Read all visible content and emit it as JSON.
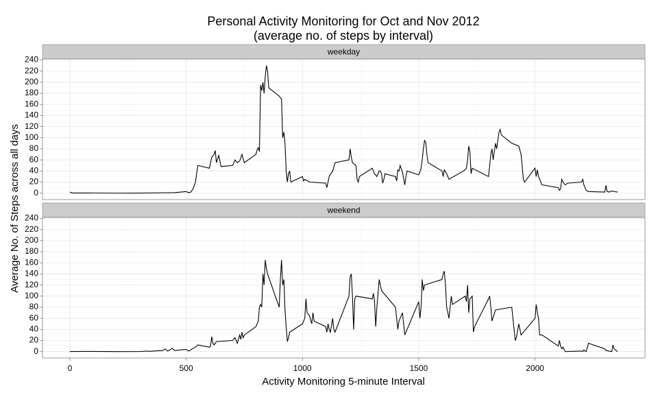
{
  "chart_data": {
    "type": "line",
    "title": "Personal Activity Monitoring for Oct and Nov 2012",
    "subtitle": "(average no. of steps by interval)",
    "x_label": "Activity Monitoring 5-minute Interval",
    "y_label": "Average No. of Steps across all days",
    "xlim": [
      -117.75,
      2472.75
    ],
    "xticks": [
      0,
      500,
      1000,
      1500,
      2000
    ],
    "ylim": [
      -11.5,
      241.9
    ],
    "yticks": [
      0,
      20,
      40,
      60,
      80,
      100,
      120,
      140,
      160,
      180,
      200,
      220,
      240
    ],
    "grid": true,
    "color": "#000000",
    "panels": [
      {
        "name": "weekday",
        "x": [
          0,
          10,
          20,
          30,
          100,
          200,
          300,
          400,
          450,
          500,
          510,
          520,
          530,
          540,
          550,
          600,
          610,
          620,
          625,
          630,
          640,
          650,
          700,
          710,
          720,
          730,
          740,
          745,
          750,
          800,
          805,
          810,
          815,
          820,
          825,
          830,
          835,
          840,
          845,
          850,
          855,
          900,
          905,
          910,
          915,
          920,
          925,
          930,
          935,
          940,
          945,
          950,
          1000,
          1005,
          1010,
          1030,
          1100,
          1105,
          1110,
          1115,
          1130,
          1140,
          1200,
          1205,
          1210,
          1215,
          1230,
          1235,
          1240,
          1245,
          1300,
          1310,
          1320,
          1330,
          1335,
          1340,
          1345,
          1350,
          1355,
          1400,
          1405,
          1410,
          1415,
          1420,
          1430,
          1440,
          1445,
          1450,
          1500,
          1505,
          1510,
          1515,
          1520,
          1525,
          1530,
          1535,
          1540,
          1600,
          1605,
          1610,
          1620,
          1630,
          1700,
          1705,
          1710,
          1715,
          1720,
          1725,
          1730,
          1800,
          1805,
          1810,
          1815,
          1820,
          1830,
          1835,
          1840,
          1845,
          1850,
          1855,
          1900,
          1930,
          1940,
          1950,
          1955,
          2000,
          2005,
          2010,
          2015,
          2030,
          2100,
          2105,
          2110,
          2115,
          2120,
          2130,
          2140,
          2200,
          2205,
          2210,
          2215,
          2220,
          2230,
          2300,
          2305,
          2310,
          2320,
          2330,
          2340,
          2355
        ],
        "values": [
          2,
          0.5,
          0.2,
          0.3,
          0.4,
          0.1,
          0.2,
          0.7,
          1,
          3,
          1,
          2,
          8,
          20,
          50,
          45,
          65,
          70,
          77,
          55,
          68,
          48,
          50,
          60,
          55,
          58,
          70,
          62,
          55,
          70,
          78,
          82,
          75,
          195,
          185,
          200,
          180,
          210,
          230,
          220,
          190,
          175,
          172,
          170,
          100,
          110,
          90,
          40,
          20,
          35,
          40,
          20,
          30,
          22,
          25,
          20,
          18,
          10,
          20,
          30,
          40,
          55,
          60,
          80,
          65,
          55,
          50,
          25,
          20,
          30,
          45,
          35,
          30,
          40,
          40,
          35,
          18,
          25,
          35,
          30,
          22,
          42,
          40,
          50,
          38,
          15,
          30,
          40,
          33,
          38,
          45,
          60,
          80,
          95,
          92,
          70,
          55,
          40,
          30,
          42,
          35,
          25,
          42,
          45,
          60,
          85,
          75,
          35,
          45,
          30,
          50,
          70,
          80,
          60,
          90,
          80,
          95,
          110,
          115,
          105,
          90,
          85,
          70,
          25,
          20,
          45,
          30,
          42,
          30,
          15,
          10,
          5,
          8,
          25,
          20,
          15,
          18,
          20,
          25,
          15,
          10,
          5,
          3,
          2,
          14,
          3,
          2,
          4,
          3,
          2
        ]
      },
      {
        "name": "weekend",
        "x": [
          0,
          100,
          200,
          300,
          330,
          340,
          400,
          410,
          420,
          430,
          440,
          450,
          500,
          510,
          520,
          530,
          540,
          550,
          600,
          605,
          610,
          615,
          620,
          630,
          700,
          710,
          720,
          730,
          735,
          740,
          745,
          750,
          800,
          810,
          815,
          820,
          825,
          830,
          835,
          840,
          845,
          850,
          900,
          905,
          910,
          915,
          920,
          925,
          930,
          935,
          940,
          945,
          1000,
          1005,
          1010,
          1015,
          1020,
          1030,
          1040,
          1045,
          1050,
          1100,
          1105,
          1110,
          1115,
          1120,
          1130,
          1135,
          1140,
          1200,
          1205,
          1210,
          1215,
          1220,
          1225,
          1230,
          1300,
          1305,
          1310,
          1315,
          1320,
          1330,
          1340,
          1400,
          1405,
          1410,
          1415,
          1430,
          1440,
          1500,
          1505,
          1510,
          1515,
          1520,
          1525,
          1600,
          1605,
          1610,
          1615,
          1620,
          1630,
          1640,
          1645,
          1700,
          1705,
          1710,
          1715,
          1720,
          1730,
          1735,
          1740,
          1800,
          1805,
          1810,
          1815,
          1830,
          1900,
          1910,
          1915,
          1920,
          1930,
          1940,
          2000,
          2005,
          2010,
          2015,
          2020,
          2030,
          2100,
          2105,
          2110,
          2115,
          2120,
          2130,
          2200,
          2205,
          2210,
          2215,
          2220,
          2230,
          2300,
          2305,
          2330,
          2335,
          2340,
          2355
        ],
        "values": [
          0.2,
          0.3,
          0,
          0.1,
          1,
          0.5,
          2,
          5,
          1,
          3,
          6,
          2,
          4,
          1,
          3,
          6,
          8,
          12,
          8,
          10,
          27,
          15,
          12,
          18,
          20,
          25,
          15,
          30,
          22,
          35,
          25,
          30,
          45,
          55,
          80,
          85,
          80,
          140,
          120,
          165,
          150,
          140,
          80,
          130,
          165,
          120,
          130,
          75,
          45,
          18,
          25,
          35,
          50,
          55,
          60,
          95,
          70,
          65,
          50,
          70,
          55,
          45,
          35,
          50,
          40,
          35,
          60,
          40,
          35,
          100,
          135,
          140,
          100,
          40,
          95,
          100,
          95,
          105,
          90,
          45,
          80,
          130,
          110,
          80,
          60,
          40,
          55,
          70,
          30,
          90,
          60,
          80,
          130,
          110,
          120,
          130,
          140,
          145,
          120,
          80,
          60,
          100,
          85,
          100,
          90,
          120,
          70,
          95,
          100,
          35,
          45,
          95,
          100,
          80,
          55,
          75,
          80,
          40,
          20,
          25,
          50,
          30,
          60,
          85,
          70,
          60,
          30,
          30,
          10,
          20,
          10,
          5,
          8,
          0,
          1,
          0,
          3,
          1,
          0,
          15,
          5,
          2,
          0,
          12,
          5,
          0
        ]
      }
    ]
  }
}
